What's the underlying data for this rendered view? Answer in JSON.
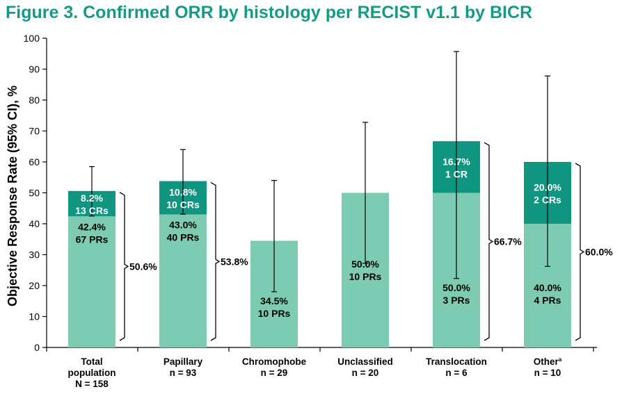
{
  "title": "Figure 3. Confirmed ORR by histology per RECIST v1.1 by BICR",
  "colors": {
    "title": "#159a86",
    "pr_fill": "#7ccbb2",
    "cr_fill": "#0f9580",
    "axis": "#000000"
  },
  "chart_data": {
    "type": "bar",
    "stacked": true,
    "ylabel": "Objective Response Rate (95% CI), %",
    "ylim": [
      0,
      100
    ],
    "yticks": [
      "0",
      "10",
      "20",
      "30",
      "40",
      "50",
      "60",
      "70",
      "80",
      "90",
      "100"
    ],
    "grid": false,
    "categories": [
      {
        "lines": [
          "Total",
          "population",
          "N = 158"
        ]
      },
      {
        "lines": [
          "Papillary",
          "n = 93"
        ]
      },
      {
        "lines": [
          "Chromophobe",
          "n = 29"
        ]
      },
      {
        "lines": [
          "Unclassified",
          "n = 20"
        ]
      },
      {
        "lines": [
          "Translocation",
          "n = 6"
        ],
        "sup": ""
      },
      {
        "lines": [
          "Other",
          "n = 10"
        ],
        "sup": "a"
      }
    ],
    "bars": [
      {
        "pr": 42.4,
        "cr": 8.2,
        "total": 50.6,
        "ci": [
          42.5,
          58.5
        ],
        "pr_label": [
          "42.4%",
          "67 PRs"
        ],
        "cr_label": [
          "8.2%",
          "13 CRs"
        ],
        "total_label": "50.6%"
      },
      {
        "pr": 43.0,
        "cr": 10.8,
        "total": 53.8,
        "ci": [
          43.1,
          64.0
        ],
        "pr_label": [
          "43.0%",
          "40 PRs"
        ],
        "cr_label": [
          "10.8%",
          "10 CRs"
        ],
        "total_label": "53.8%"
      },
      {
        "pr": 34.5,
        "cr": 0,
        "total": 34.5,
        "ci": [
          18.0,
          54.0
        ],
        "pr_label": [
          "34.5%",
          "10 PRs"
        ],
        "cr_label": [],
        "total_label": ""
      },
      {
        "pr": 50.0,
        "cr": 0,
        "total": 50.0,
        "ci": [
          27.2,
          72.8
        ],
        "pr_label": [
          "50.0%",
          "10 PRs"
        ],
        "cr_label": [],
        "total_label": ""
      },
      {
        "pr": 50.0,
        "cr": 16.7,
        "total": 66.7,
        "ci": [
          22.3,
          95.7
        ],
        "pr_label": [
          "50.0%",
          "3 PRs"
        ],
        "cr_label": [
          "16.7%",
          "1 CR"
        ],
        "total_label": "66.7%"
      },
      {
        "pr": 40.0,
        "cr": 20.0,
        "total": 60.0,
        "ci": [
          26.2,
          87.8
        ],
        "pr_label": [
          "40.0%",
          "4 PRs"
        ],
        "cr_label": [
          "20.0%",
          "2 CRs"
        ],
        "total_label": "60.0%"
      }
    ]
  }
}
